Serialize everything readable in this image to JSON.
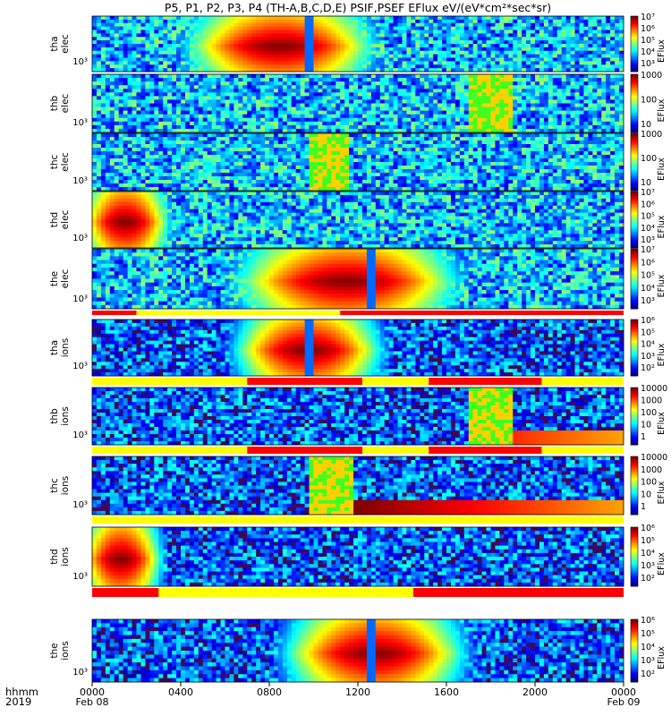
{
  "title": "P5, P1, P2, P3, P4 (TH-A,B,C,D,E) PSIF,PSEF EFlux eV/(eV*cm²*sec*sr)",
  "colorbar_unit_label": "EFlux",
  "x_axis": {
    "row_labels": [
      "hhmm",
      "2019"
    ],
    "ticks": [
      {
        "value": 0,
        "label": "0000",
        "date": "Feb 08"
      },
      {
        "value": 4,
        "label": "0400",
        "date": ""
      },
      {
        "value": 8,
        "label": "0800",
        "date": ""
      },
      {
        "value": 12,
        "label": "1200",
        "date": ""
      },
      {
        "value": 16,
        "label": "1600",
        "date": ""
      },
      {
        "value": 20,
        "label": "2000",
        "date": ""
      },
      {
        "value": 24,
        "label": "0000",
        "date": "Feb 09"
      }
    ],
    "range_hours": [
      0,
      24
    ]
  },
  "chart_data": {
    "type": "heatmap",
    "description_of_axes": "x: time (hhmm, UT), y: energy (eV, log), color: EFlux",
    "panels": [
      {
        "probe_label": "tha",
        "species_label": "elec",
        "ytick": "10³",
        "cbar_ticks": [
          "10³",
          "10⁴",
          "10⁵",
          "10⁶",
          "10⁷"
        ],
        "cbar_scale": "log7",
        "hot_spans": [
          [
            4.0,
            13.0
          ]
        ],
        "cold_notches": [
          9.8
        ],
        "sat_bursts": [],
        "tail_spans": [],
        "seed": 11
      },
      {
        "probe_label": "thb",
        "species_label": "elec",
        "ytick": "10³",
        "cbar_ticks": [
          "10",
          "100",
          "1000"
        ],
        "cbar_scale": "lin4",
        "hot_spans": [],
        "cold_notches": [],
        "sat_bursts": [
          [
            17.1,
            19.0
          ]
        ],
        "tail_spans": [],
        "seed": 22
      },
      {
        "probe_label": "thc",
        "species_label": "elec",
        "ytick": "10³",
        "cbar_ticks": [
          "10",
          "100",
          "1000"
        ],
        "cbar_scale": "lin4",
        "hot_spans": [],
        "cold_notches": [],
        "sat_bursts": [
          [
            9.8,
            11.6
          ]
        ],
        "tail_spans": [],
        "seed": 33
      },
      {
        "probe_label": "thd",
        "species_label": "elec",
        "ytick": "10³",
        "cbar_ticks": [
          "10³",
          "10⁴",
          "10⁵",
          "10⁶",
          "10⁷"
        ],
        "cbar_scale": "log7",
        "hot_spans": [
          [
            0.0,
            3.0
          ]
        ],
        "cold_notches": [],
        "sat_bursts": [],
        "tail_spans": [],
        "seed": 44
      },
      {
        "probe_label": "the",
        "species_label": "elec",
        "ytick": "10³",
        "cbar_ticks": [
          "10³",
          "10⁴",
          "10⁵",
          "10⁶",
          "10⁷"
        ],
        "cbar_scale": "log7",
        "hot_spans": [
          [
            6.0,
            17.0
          ]
        ],
        "cold_notches": [
          12.5
        ],
        "sat_bursts": [],
        "tail_spans": [],
        "seed": 55
      },
      {
        "probe_label": "tha",
        "species_label": "ions",
        "ytick": "10³",
        "cbar_ticks": [
          "10²",
          "10³",
          "10⁴",
          "10⁵",
          "10⁶"
        ],
        "cbar_scale": "log6",
        "hot_spans": [
          [
            6.5,
            13.0
          ]
        ],
        "cold_notches": [
          9.8
        ],
        "sat_bursts": [],
        "tail_spans": [],
        "seed": 66
      },
      {
        "probe_label": "thb",
        "species_label": "ions",
        "ytick": "10³",
        "cbar_ticks": [
          "1",
          "10",
          "100",
          "1000",
          "10000"
        ],
        "cbar_scale": "lin5",
        "hot_spans": [],
        "cold_notches": [],
        "sat_bursts": [
          [
            17.0,
            19.0
          ]
        ],
        "tail_spans": [
          [
            19.0,
            24.0
          ]
        ],
        "seed": 77
      },
      {
        "probe_label": "thc",
        "species_label": "ions",
        "ytick": "10³",
        "cbar_ticks": [
          "1",
          "10",
          "100",
          "1000",
          "10000"
        ],
        "cbar_scale": "lin5",
        "hot_spans": [],
        "cold_notches": [],
        "sat_bursts": [
          [
            9.8,
            11.7
          ]
        ],
        "tail_spans": [
          [
            11.7,
            24.0
          ]
        ],
        "seed": 88
      },
      {
        "probe_label": "thd",
        "species_label": "ions",
        "ytick": "10³",
        "cbar_ticks": [
          "10²",
          "10³",
          "10⁴",
          "10⁵",
          "10⁶"
        ],
        "cbar_scale": "log6",
        "hot_spans": [
          [
            0.0,
            2.6
          ]
        ],
        "cold_notches": [],
        "sat_bursts": [],
        "tail_spans": [],
        "seed": 99
      },
      {
        "probe_label": "the",
        "species_label": "ions",
        "ytick": "10³",
        "cbar_ticks": [
          "10²",
          "10³",
          "10⁴",
          "10⁵",
          "10⁶"
        ],
        "cbar_scale": "log6",
        "hot_spans": [
          [
            8.5,
            17.0
          ]
        ],
        "cold_notches": [
          12.5
        ],
        "sat_bursts": [],
        "tail_spans": [],
        "seed": 111
      }
    ],
    "status_bars": [
      {
        "after_panel": 4,
        "segments": [
          [
            "yellow",
            0,
            24
          ],
          [
            "red",
            0,
            2
          ],
          [
            "red",
            11.2,
            24
          ]
        ]
      },
      {
        "after_panel": 5,
        "segments": [
          [
            "yellow",
            0,
            24
          ],
          [
            "red",
            7,
            12.2
          ],
          [
            "red",
            15.2,
            20.3
          ]
        ]
      },
      {
        "after_panel": 6,
        "segments": [
          [
            "yellow",
            0,
            24
          ],
          [
            "red",
            7,
            12.2
          ],
          [
            "red",
            15.2,
            20.3
          ]
        ]
      },
      {
        "after_panel": 7,
        "segments": [
          [
            "yellow",
            0,
            24
          ]
        ]
      },
      {
        "after_panel": 8,
        "segments": [
          [
            "yellow",
            0,
            24
          ],
          [
            "red",
            0,
            3
          ],
          [
            "red",
            14.5,
            24
          ]
        ]
      }
    ]
  },
  "colors": {
    "background": "#ffffff",
    "status_yellow": "#ffff00",
    "status_red": "#ff0000",
    "saturated_green": "#40ff20",
    "saturated_yellow": "#ffd000"
  }
}
